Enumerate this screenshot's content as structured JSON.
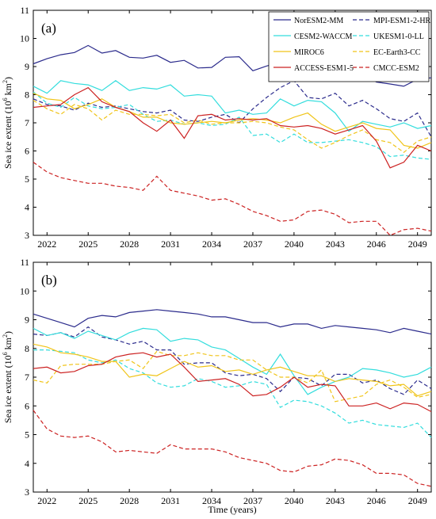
{
  "chart_data": {
    "type": "line",
    "xlabel": "Time (years)",
    "x": [
      2021,
      2022,
      2023,
      2024,
      2025,
      2026,
      2027,
      2028,
      2029,
      2030,
      2031,
      2032,
      2033,
      2034,
      2035,
      2036,
      2037,
      2038,
      2039,
      2040,
      2041,
      2042,
      2043,
      2044,
      2045,
      2046,
      2047,
      2048,
      2049,
      2050
    ],
    "xticks": [
      2022,
      2025,
      2028,
      2031,
      2034,
      2037,
      2040,
      2043,
      2046,
      2049
    ],
    "xlim": [
      2021,
      2050
    ],
    "legend_position": "top-right",
    "series_style": [
      {
        "name": "NorESM2-MM",
        "color": "#2b2b8c",
        "dash": false
      },
      {
        "name": "MPI-ESM1-2-HR",
        "color": "#2b2b8c",
        "dash": true
      },
      {
        "name": "CESM2-WACCM",
        "color": "#33dddd",
        "dash": false
      },
      {
        "name": "UKESM1-0-LL",
        "color": "#33dddd",
        "dash": true
      },
      {
        "name": "MIROC6",
        "color": "#f0c419",
        "dash": false
      },
      {
        "name": "EC-Earth3-CC",
        "color": "#f0c419",
        "dash": true
      },
      {
        "name": "ACCESS-ESM1-5",
        "color": "#cc2222",
        "dash": false
      },
      {
        "name": "CMCC-ESM2",
        "color": "#cc2222",
        "dash": true
      }
    ],
    "panels": [
      {
        "label": "(a)",
        "ylabel": "Sea ice extent (10",
        "ylabel_sup": "6",
        "ylabel_unit": " km",
        "ylabel_unit_sup": "2",
        "ylabel_close": ")",
        "ylim": [
          3,
          11
        ],
        "yticks": [
          3,
          4,
          5,
          6,
          7,
          8,
          9,
          10,
          11
        ],
        "series": [
          {
            "name": "NorESM2-MM",
            "values": [
              9.1,
              9.28,
              9.42,
              9.5,
              9.75,
              9.48,
              9.57,
              9.33,
              9.3,
              9.4,
              9.15,
              9.22,
              8.95,
              8.97,
              9.33,
              9.35,
              8.85,
              9.02,
              9.15,
              9.18,
              8.9,
              9.05,
              9.1,
              8.72,
              8.78,
              8.45,
              8.38,
              8.3,
              8.55,
              8.6
            ]
          },
          {
            "name": "MPI-ESM1-2-HR",
            "values": [
              7.85,
              7.65,
              7.6,
              7.45,
              7.7,
              7.55,
              7.6,
              7.5,
              7.4,
              7.35,
              7.45,
              7.1,
              7.05,
              7.2,
              7.3,
              7.0,
              7.5,
              7.9,
              8.25,
              8.5,
              7.9,
              7.85,
              8.05,
              7.6,
              7.8,
              7.5,
              7.15,
              7.05,
              7.35,
              6.5
            ]
          },
          {
            "name": "CESM2-WACCM",
            "values": [
              8.3,
              8.05,
              8.5,
              8.4,
              8.35,
              8.15,
              8.5,
              8.15,
              8.25,
              8.2,
              8.35,
              7.95,
              8.0,
              7.95,
              7.35,
              7.45,
              7.3,
              7.35,
              7.85,
              7.6,
              7.8,
              7.75,
              7.35,
              6.7,
              7.05,
              6.95,
              6.85,
              7.0,
              6.8,
              6.9
            ]
          },
          {
            "name": "UKESM1-0-LL",
            "values": [
              8.1,
              7.7,
              7.55,
              7.9,
              7.6,
              7.5,
              7.55,
              7.65,
              7.3,
              7.05,
              7.1,
              6.95,
              7.0,
              6.9,
              6.95,
              7.2,
              6.55,
              6.6,
              6.3,
              6.6,
              6.3,
              6.3,
              6.35,
              6.4,
              6.3,
              6.15,
              5.8,
              5.85,
              5.75,
              5.7
            ]
          },
          {
            "name": "MIROC6",
            "values": [
              8.05,
              7.85,
              7.8,
              7.5,
              7.65,
              7.85,
              7.55,
              7.4,
              7.2,
              7.2,
              7.0,
              6.95,
              7.0,
              7.05,
              7.0,
              7.1,
              7.15,
              7.1,
              7.0,
              7.2,
              7.35,
              6.95,
              6.7,
              6.85,
              7.0,
              6.8,
              6.75,
              6.2,
              6.1,
              6.3
            ]
          },
          {
            "name": "EC-Earth3-CC",
            "values": [
              7.8,
              7.5,
              7.3,
              7.65,
              7.5,
              7.1,
              7.45,
              7.3,
              7.3,
              7.25,
              7.3,
              7.0,
              7.1,
              6.95,
              7.0,
              7.0,
              7.05,
              7.0,
              6.85,
              6.75,
              6.4,
              6.1,
              6.3,
              6.55,
              6.75,
              6.4,
              6.3,
              5.95,
              6.35,
              6.5
            ]
          },
          {
            "name": "ACCESS-ESM1-5",
            "values": [
              7.55,
              7.6,
              7.65,
              8.0,
              8.25,
              7.75,
              7.55,
              7.4,
              7.0,
              6.7,
              7.1,
              6.45,
              7.25,
              7.3,
              7.1,
              7.15,
              7.1,
              7.15,
              6.9,
              6.85,
              6.9,
              6.8,
              6.6,
              6.75,
              6.9,
              6.35,
              5.4,
              5.6,
              6.2,
              6.0
            ]
          },
          {
            "name": "CMCC-ESM2",
            "values": [
              5.6,
              5.25,
              5.05,
              4.95,
              4.85,
              4.85,
              4.75,
              4.7,
              4.6,
              5.1,
              4.6,
              4.5,
              4.4,
              4.25,
              4.3,
              4.1,
              3.85,
              3.7,
              3.5,
              3.55,
              3.85,
              3.9,
              3.75,
              3.45,
              3.5,
              3.5,
              3.0,
              3.2,
              3.25,
              3.15
            ]
          }
        ]
      },
      {
        "label": "(b)",
        "ylabel": "Sea ice extent (10",
        "ylabel_sup": "6",
        "ylabel_unit": " km",
        "ylabel_unit_sup": "2",
        "ylabel_close": ")",
        "ylim": [
          3,
          11
        ],
        "yticks": [
          3,
          4,
          5,
          6,
          7,
          8,
          9,
          10,
          11
        ],
        "series": [
          {
            "name": "NorESM2-MM",
            "values": [
              9.2,
              9.05,
              8.9,
              8.75,
              9.05,
              9.15,
              9.1,
              9.25,
              9.3,
              9.35,
              9.3,
              9.25,
              9.2,
              9.1,
              9.1,
              9.0,
              8.9,
              8.9,
              8.75,
              8.85,
              8.85,
              8.7,
              8.8,
              8.75,
              8.7,
              8.65,
              8.55,
              8.7,
              8.6,
              8.5
            ]
          },
          {
            "name": "MPI-ESM1-2-HR",
            "values": [
              8.5,
              8.45,
              8.55,
              8.4,
              8.75,
              8.4,
              8.3,
              8.15,
              8.25,
              7.95,
              7.95,
              7.45,
              7.5,
              7.5,
              7.15,
              7.05,
              7.1,
              6.95,
              6.5,
              7.0,
              6.95,
              6.7,
              7.1,
              7.1,
              6.8,
              6.9,
              6.6,
              6.4,
              6.9,
              6.6
            ]
          },
          {
            "name": "CESM2-WACCM",
            "values": [
              8.7,
              8.45,
              8.55,
              8.35,
              8.6,
              8.45,
              8.3,
              8.55,
              8.7,
              8.65,
              8.25,
              8.35,
              8.3,
              8.05,
              7.95,
              7.65,
              7.35,
              7.1,
              7.8,
              7.05,
              6.4,
              6.65,
              6.85,
              7.0,
              7.3,
              7.25,
              7.15,
              7.0,
              7.1,
              7.35
            ]
          },
          {
            "name": "UKESM1-0-LL",
            "values": [
              7.95,
              7.95,
              7.9,
              7.85,
              7.6,
              7.5,
              7.6,
              7.3,
              7.15,
              6.8,
              6.65,
              6.7,
              6.95,
              6.85,
              6.65,
              6.7,
              6.85,
              6.75,
              5.95,
              6.2,
              6.15,
              6.0,
              5.75,
              5.4,
              5.5,
              5.35,
              5.3,
              5.25,
              5.4,
              4.9
            ]
          },
          {
            "name": "MIROC6",
            "values": [
              8.15,
              8.05,
              7.85,
              7.8,
              7.7,
              7.55,
              7.55,
              7.0,
              7.1,
              7.05,
              7.3,
              7.55,
              7.35,
              7.4,
              7.2,
              7.25,
              7.1,
              7.25,
              7.35,
              7.2,
              7.05,
              7.05,
              6.85,
              6.95,
              6.9,
              6.85,
              6.7,
              6.75,
              6.35,
              6.5
            ]
          },
          {
            "name": "EC-Earth3-CC",
            "values": [
              6.9,
              6.8,
              7.4,
              7.45,
              7.45,
              7.45,
              7.55,
              7.6,
              7.3,
              7.9,
              7.75,
              7.75,
              7.85,
              7.75,
              7.75,
              7.6,
              7.6,
              7.25,
              7.0,
              7.0,
              6.8,
              7.25,
              6.15,
              6.25,
              6.35,
              6.75,
              6.9,
              6.65,
              6.3,
              6.4
            ]
          },
          {
            "name": "ACCESS-ESM1-5",
            "values": [
              7.3,
              7.35,
              7.15,
              7.2,
              7.4,
              7.45,
              7.7,
              7.8,
              7.85,
              7.7,
              7.8,
              7.35,
              6.85,
              6.9,
              6.95,
              6.75,
              6.35,
              6.4,
              6.65,
              7.0,
              6.65,
              6.75,
              6.7,
              6.0,
              6.0,
              6.1,
              5.9,
              6.1,
              6.05,
              5.8
            ]
          },
          {
            "name": "CMCC-ESM2",
            "values": [
              5.85,
              5.2,
              4.95,
              4.9,
              4.95,
              4.75,
              4.4,
              4.45,
              4.4,
              4.35,
              4.65,
              4.5,
              4.5,
              4.5,
              4.4,
              4.2,
              4.1,
              4.0,
              3.75,
              3.7,
              3.9,
              3.95,
              4.15,
              4.1,
              3.95,
              3.65,
              3.65,
              3.6,
              3.3,
              3.2
            ]
          }
        ]
      }
    ]
  }
}
